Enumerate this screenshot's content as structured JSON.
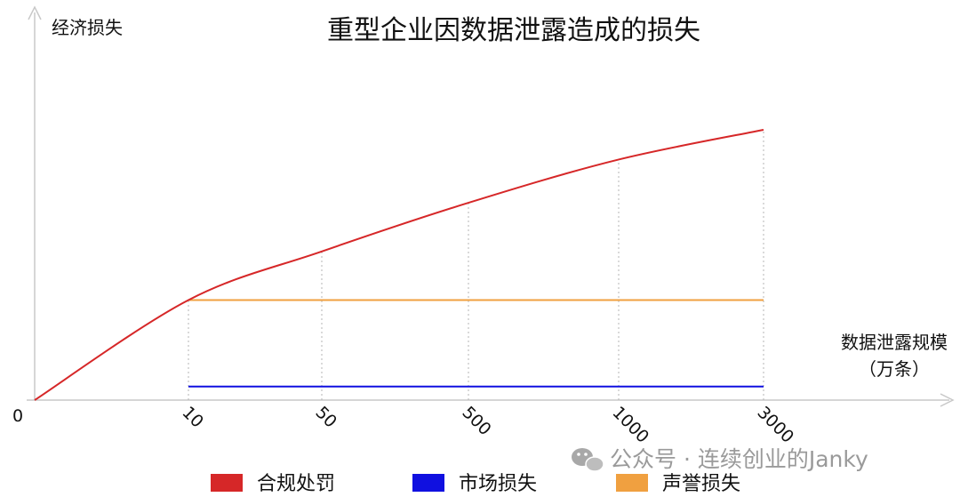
{
  "chart_data": {
    "type": "line",
    "title": "重型企业因数据泄露造成的损失",
    "ylabel": "经济损失",
    "xlabel": "数据泄露规模",
    "xunit": "（万条）",
    "origin_label": "0",
    "categories": [
      "10",
      "50",
      "500",
      "1000",
      "3000"
    ],
    "grid": "vertical dotted lines at each category",
    "legend_position": "bottom",
    "curve": {
      "name": "合规处罚",
      "color": "#d62728",
      "points": [
        [
          0,
          0
        ],
        [
          10,
          0.37
        ],
        [
          50,
          0.55
        ],
        [
          500,
          0.73
        ],
        [
          1000,
          0.89
        ],
        [
          3000,
          1.0
        ]
      ]
    },
    "series": [
      {
        "name": "合规处罚",
        "color": "#d62728",
        "values": [
          0.37,
          0.55,
          0.73,
          0.89,
          1.0
        ]
      },
      {
        "name": "市场损失",
        "color": "#1010e0",
        "values": [
          0.05,
          0.05,
          0.05,
          0.05,
          0.05
        ]
      },
      {
        "name": "声誉损失",
        "color": "#f0a040",
        "values": [
          0.37,
          0.37,
          0.37,
          0.37,
          0.37
        ]
      }
    ]
  },
  "watermark": {
    "icon": "wechat-icon",
    "text": "公众号 · 连续创业的Janky"
  }
}
